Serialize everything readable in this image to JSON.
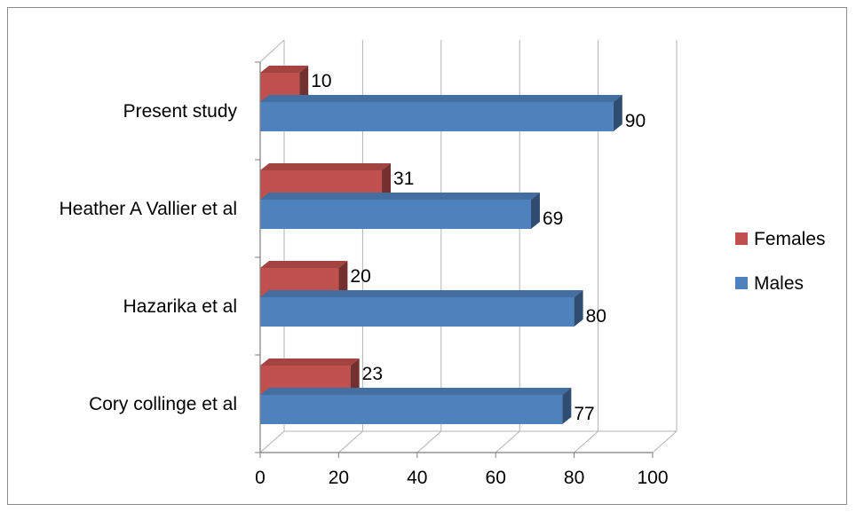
{
  "chart_data": {
    "type": "bar",
    "orientation": "horizontal",
    "style": "3d-clustered",
    "categories": [
      "Present study",
      "Heather A Vallier et al",
      "Hazarika et al",
      "Cory collinge et al"
    ],
    "series": [
      {
        "name": "Females",
        "values": [
          10,
          31,
          20,
          23
        ],
        "color": "#c0504d"
      },
      {
        "name": "Males",
        "values": [
          90,
          69,
          80,
          77
        ],
        "color": "#4f81bd"
      }
    ],
    "xlim": [
      0,
      100
    ],
    "xticks": [
      "0",
      "20",
      "40",
      "60",
      "80",
      "100"
    ],
    "grid": true,
    "legend_position": "right",
    "data_labels": true
  }
}
